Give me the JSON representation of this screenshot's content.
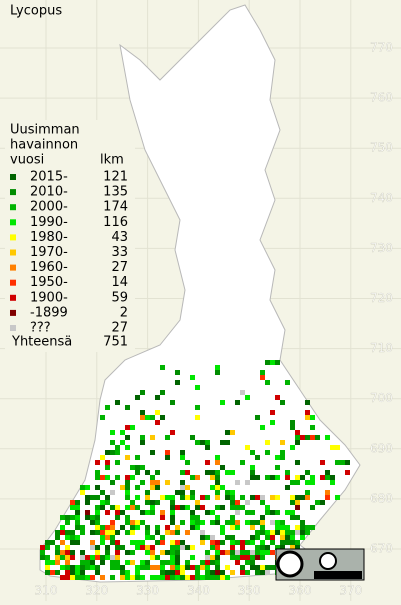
{
  "title": "Lycopus",
  "legend": {
    "heading": [
      "Uusimman",
      "havainnon",
      "vuosi"
    ],
    "count_heading": "lkm",
    "entries": [
      {
        "label": "2015-",
        "count": 121,
        "color": "#006400"
      },
      {
        "label": "2010-",
        "count": 135,
        "color": "#008c00"
      },
      {
        "label": "2000-",
        "count": 174,
        "color": "#00b400"
      },
      {
        "label": "1990-",
        "count": 116,
        "color": "#00e600"
      },
      {
        "label": "1980-",
        "count": 43,
        "color": "#ffff00"
      },
      {
        "label": "1970-",
        "count": 33,
        "color": "#ffc800"
      },
      {
        "label": "1960-",
        "count": 27,
        "color": "#ff8000"
      },
      {
        "label": "1950-",
        "count": 14,
        "color": "#ff3000"
      },
      {
        "label": "1900-",
        "count": 59,
        "color": "#d00000"
      },
      {
        "label": "-1899",
        "count": 2,
        "color": "#800000"
      },
      {
        "label": "???",
        "count": 27,
        "color": "#c8c8c8"
      }
    ],
    "total_label": "Yhteensä",
    "total": 751
  },
  "grid": {
    "y_labels": [
      770,
      760,
      750,
      740,
      730,
      720,
      710,
      700,
      690,
      680,
      670
    ],
    "x_labels": [
      310,
      320,
      330,
      340,
      350,
      360,
      370
    ]
  }
}
